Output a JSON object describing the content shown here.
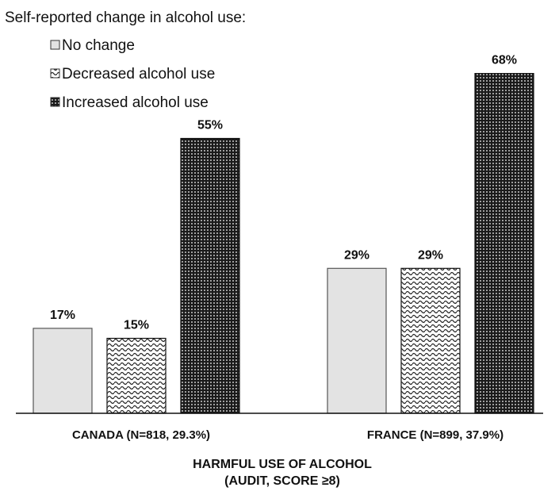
{
  "chart_data": {
    "type": "bar",
    "legend_title": "Self-reported change in alcohol use:",
    "legend_placement": "top-left",
    "categories": [
      "CANADA (N=818, 29.3%)",
      "FRANCE (N=899, 37.9%)"
    ],
    "series": [
      {
        "name": "No change",
        "values": [
          17,
          29
        ],
        "value_labels": [
          "17%",
          "29%"
        ],
        "pattern": "solid",
        "color": "#e3e3e3"
      },
      {
        "name": "Decreased alcohol use",
        "values": [
          15,
          29
        ],
        "value_labels": [
          "15%",
          "29%"
        ],
        "pattern": "wave",
        "color": "#ffffff"
      },
      {
        "name": "Increased alcohol use",
        "values": [
          55,
          68
        ],
        "value_labels": [
          "55%",
          "68%"
        ],
        "pattern": "dots",
        "color": "#222222"
      }
    ],
    "xlabel_lines": [
      "HARMFUL USE OF ALCOHOL",
      "(AUDIT, SCORE ≥8)"
    ],
    "ylabel": "",
    "ylim": [
      0,
      70
    ],
    "grid": false
  }
}
